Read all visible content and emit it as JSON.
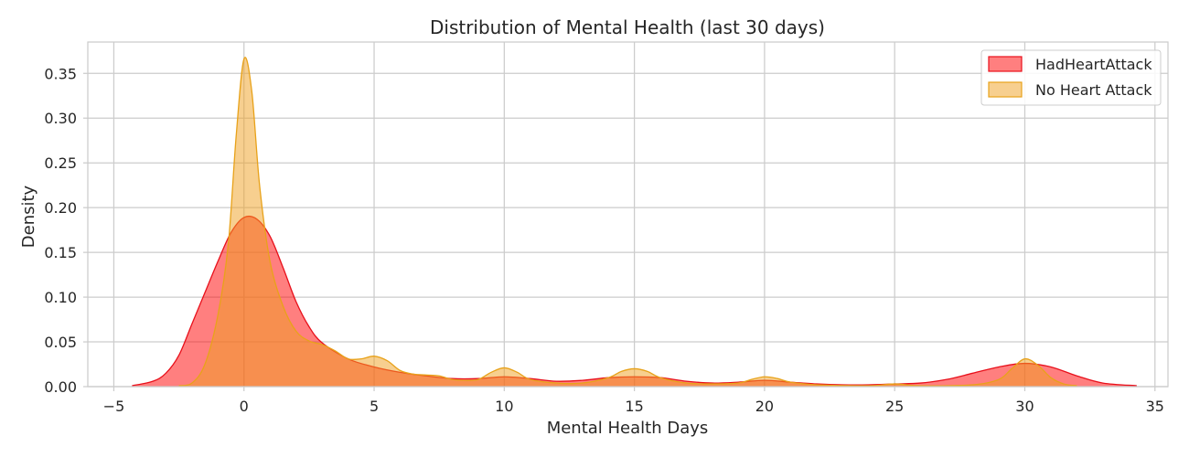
{
  "chart_data": {
    "type": "area",
    "title": "Distribution of Mental Health (last 30 days)",
    "xlabel": "Mental Health Days",
    "ylabel": "Density",
    "xlim": [
      -6,
      35.5
    ],
    "ylim": [
      0,
      0.385
    ],
    "x_ticks": [
      -5,
      0,
      5,
      10,
      15,
      20,
      25,
      30,
      35
    ],
    "y_ticks": [
      0.0,
      0.05,
      0.1,
      0.15,
      0.2,
      0.25,
      0.3,
      0.35
    ],
    "x_tick_labels": [
      "−5",
      "0",
      "5",
      "10",
      "15",
      "20",
      "25",
      "30",
      "35"
    ],
    "y_tick_labels": [
      "0.00",
      "0.05",
      "0.10",
      "0.15",
      "0.20",
      "0.25",
      "0.30",
      "0.35"
    ],
    "grid": true,
    "legend_position": "top-right",
    "series": [
      {
        "name": "HadHeartAttack",
        "fill_color": "#ff0000",
        "fill_opacity": 0.5,
        "line_color": "#e8101b",
        "points": [
          [
            -4.3,
            0.001
          ],
          [
            -3.5,
            0.006
          ],
          [
            -3.0,
            0.015
          ],
          [
            -2.5,
            0.035
          ],
          [
            -2.0,
            0.07
          ],
          [
            -1.5,
            0.105
          ],
          [
            -1.0,
            0.14
          ],
          [
            -0.5,
            0.172
          ],
          [
            0.0,
            0.189
          ],
          [
            0.5,
            0.187
          ],
          [
            1.0,
            0.168
          ],
          [
            1.5,
            0.133
          ],
          [
            2.0,
            0.095
          ],
          [
            2.5,
            0.067
          ],
          [
            3.0,
            0.049
          ],
          [
            4.0,
            0.031
          ],
          [
            5.0,
            0.022
          ],
          [
            6.0,
            0.016
          ],
          [
            7.0,
            0.012
          ],
          [
            8.0,
            0.009
          ],
          [
            9.0,
            0.009
          ],
          [
            10.0,
            0.011
          ],
          [
            11.0,
            0.009
          ],
          [
            12.0,
            0.006
          ],
          [
            13.0,
            0.007
          ],
          [
            14.0,
            0.01
          ],
          [
            15.0,
            0.011
          ],
          [
            16.0,
            0.01
          ],
          [
            17.0,
            0.006
          ],
          [
            18.0,
            0.004
          ],
          [
            19.0,
            0.005
          ],
          [
            20.0,
            0.007
          ],
          [
            21.0,
            0.005
          ],
          [
            22.0,
            0.003
          ],
          [
            23.0,
            0.002
          ],
          [
            24.0,
            0.002
          ],
          [
            25.0,
            0.003
          ],
          [
            26.0,
            0.004
          ],
          [
            27.0,
            0.008
          ],
          [
            28.0,
            0.015
          ],
          [
            29.0,
            0.022
          ],
          [
            30.0,
            0.026
          ],
          [
            31.0,
            0.022
          ],
          [
            32.0,
            0.012
          ],
          [
            33.0,
            0.004
          ],
          [
            34.3,
            0.001
          ]
        ]
      },
      {
        "name": "No Heart Attack",
        "fill_color": "#f0a020",
        "fill_opacity": 0.5,
        "line_color": "#e8a21a",
        "points": [
          [
            -2.5,
            0.001
          ],
          [
            -2.0,
            0.004
          ],
          [
            -1.5,
            0.025
          ],
          [
            -1.0,
            0.08
          ],
          [
            -0.6,
            0.16
          ],
          [
            -0.3,
            0.28
          ],
          [
            0.0,
            0.366
          ],
          [
            0.3,
            0.33
          ],
          [
            0.6,
            0.225
          ],
          [
            1.0,
            0.14
          ],
          [
            1.5,
            0.09
          ],
          [
            2.0,
            0.062
          ],
          [
            2.5,
            0.051
          ],
          [
            3.0,
            0.047
          ],
          [
            3.5,
            0.04
          ],
          [
            4.0,
            0.031
          ],
          [
            4.5,
            0.031
          ],
          [
            5.0,
            0.034
          ],
          [
            5.5,
            0.029
          ],
          [
            6.0,
            0.018
          ],
          [
            6.5,
            0.014
          ],
          [
            7.0,
            0.013
          ],
          [
            7.5,
            0.012
          ],
          [
            8.0,
            0.008
          ],
          [
            8.5,
            0.007
          ],
          [
            9.0,
            0.008
          ],
          [
            9.5,
            0.016
          ],
          [
            10.0,
            0.021
          ],
          [
            10.5,
            0.016
          ],
          [
            11.0,
            0.008
          ],
          [
            12.0,
            0.004
          ],
          [
            13.0,
            0.004
          ],
          [
            14.0,
            0.01
          ],
          [
            14.5,
            0.017
          ],
          [
            15.0,
            0.02
          ],
          [
            15.5,
            0.017
          ],
          [
            16.0,
            0.01
          ],
          [
            17.0,
            0.004
          ],
          [
            18.0,
            0.003
          ],
          [
            19.0,
            0.004
          ],
          [
            19.5,
            0.008
          ],
          [
            20.0,
            0.011
          ],
          [
            20.5,
            0.009
          ],
          [
            21.0,
            0.005
          ],
          [
            22.0,
            0.002
          ],
          [
            24.0,
            0.001
          ],
          [
            25.0,
            0.003
          ],
          [
            26.0,
            0.001
          ],
          [
            28.0,
            0.002
          ],
          [
            29.0,
            0.008
          ],
          [
            29.5,
            0.02
          ],
          [
            30.0,
            0.031
          ],
          [
            30.5,
            0.024
          ],
          [
            31.0,
            0.01
          ],
          [
            31.5,
            0.003
          ],
          [
            32.0,
            0.001
          ]
        ]
      }
    ]
  }
}
